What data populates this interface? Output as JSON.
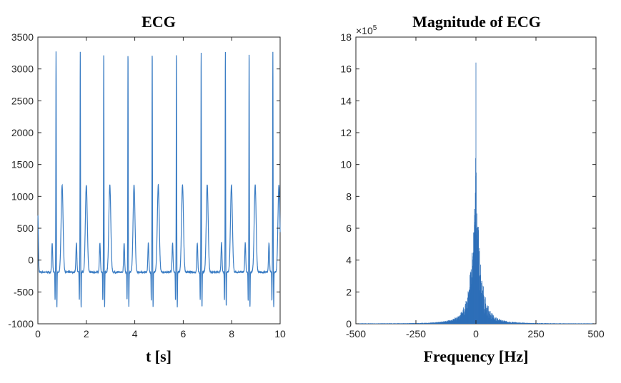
{
  "chart_data": [
    {
      "type": "line",
      "title": "ECG",
      "xlabel": "t [s]",
      "ylabel": "",
      "xlim": [
        0,
        10
      ],
      "ylim": [
        -1000,
        3500
      ],
      "xticks": [
        0,
        2,
        4,
        6,
        8,
        10
      ],
      "xtick_labels": [
        "0",
        "2",
        "4",
        "6",
        "8",
        "10"
      ],
      "yticks": [
        -1000,
        -500,
        0,
        500,
        1000,
        1500,
        2000,
        2500,
        3000,
        3500
      ],
      "ytick_labels": [
        "-1000",
        "-500",
        "0",
        "500",
        "1000",
        "1500",
        "2000",
        "2500",
        "3000",
        "3500"
      ],
      "color": "#3b7dc4",
      "beat_times": [
        0.75,
        1.75,
        2.72,
        3.72,
        4.72,
        5.72,
        6.74,
        7.74,
        8.72,
        9.7
      ],
      "baseline": -190,
      "r_peak": 3280,
      "s_trough": -740,
      "t_peak": 1180,
      "p_peak": 270
    },
    {
      "type": "area",
      "title": "Magnitude of ECG",
      "xlabel": "Frequency [Hz]",
      "ylabel": "",
      "y_multiplier": "×10",
      "y_exponent": "5",
      "xlim": [
        -500,
        500
      ],
      "ylim": [
        0,
        18
      ],
      "xticks": [
        -500,
        -250,
        0,
        250,
        500
      ],
      "xtick_labels": [
        "-500",
        "-250",
        "0",
        "250",
        "500"
      ],
      "yticks": [
        0,
        2,
        4,
        6,
        8,
        10,
        12,
        14,
        16,
        18
      ],
      "ytick_labels": [
        "0",
        "2",
        "4",
        "6",
        "8",
        "10",
        "12",
        "14",
        "16",
        "18"
      ],
      "color": "#2e6fb8",
      "peak_value": 16.4,
      "secondary_peaks": [
        10.4,
        9.5,
        6.4,
        6.0
      ],
      "decay_width_hz": 35
    }
  ]
}
